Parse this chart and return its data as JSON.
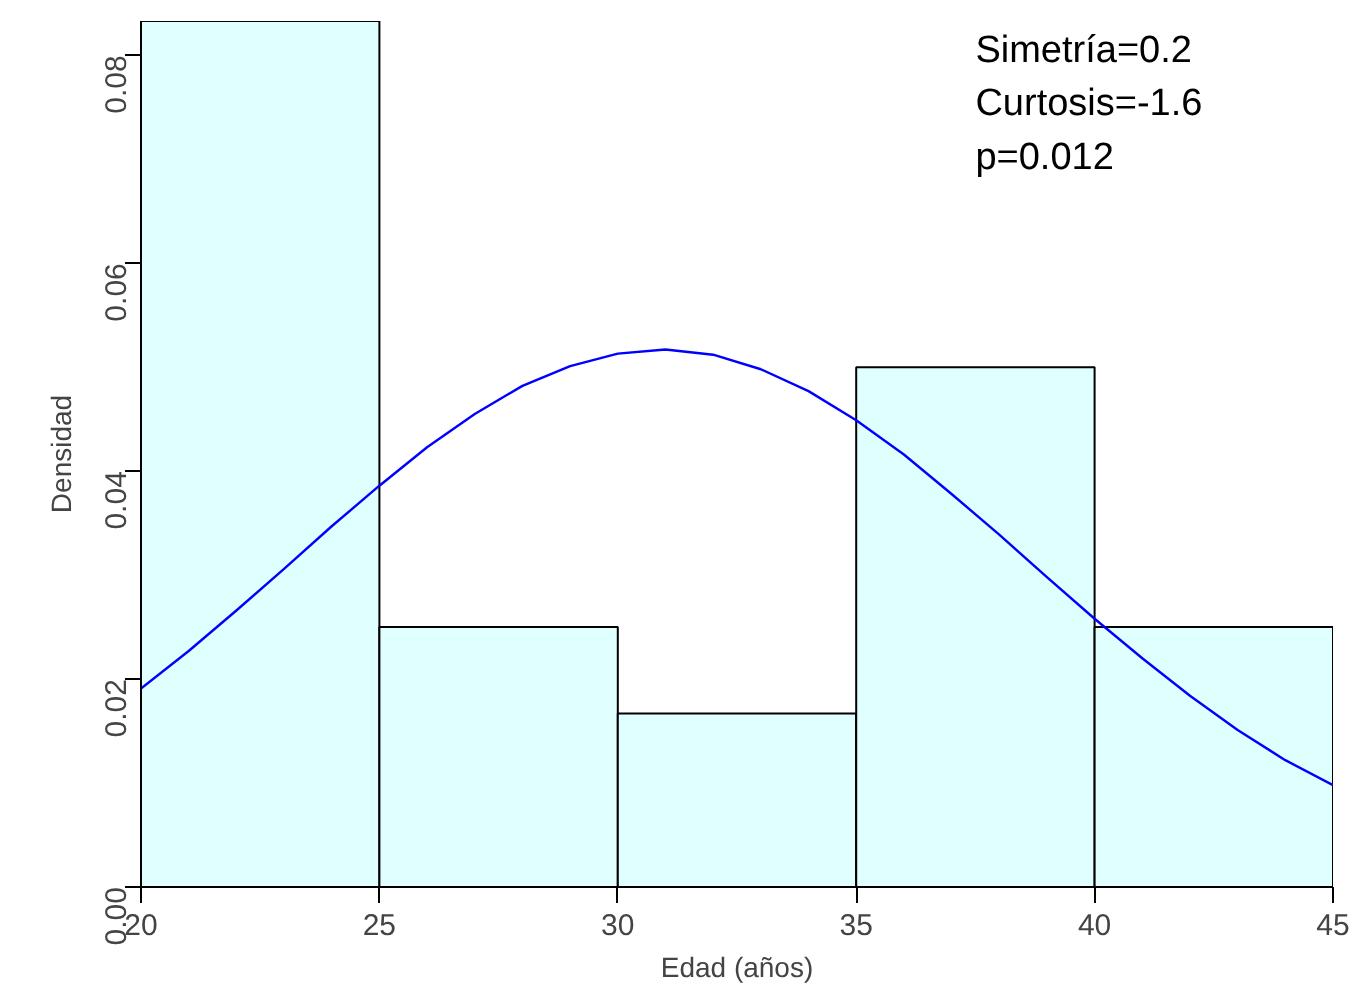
{
  "chart_data": {
    "type": "histogram",
    "xlabel": "Edad (años)",
    "ylabel": "Densidad",
    "bins": [
      20,
      25,
      30,
      35,
      40,
      45
    ],
    "values": [
      0.0833,
      0.025,
      0.0167,
      0.05,
      0.025
    ],
    "color": "#e0ffff",
    "series": [
      {
        "type": "line",
        "color": "#0000ff",
        "x": [
          20,
          21,
          22,
          23,
          24,
          25,
          26,
          27,
          28,
          29,
          30,
          31,
          32,
          33,
          34,
          35,
          36,
          37,
          38,
          39,
          40,
          41,
          42,
          43,
          44,
          45
        ],
        "values": [
          0.0191,
          0.0227,
          0.0266,
          0.0306,
          0.0347,
          0.0386,
          0.0423,
          0.0455,
          0.0482,
          0.0501,
          0.0513,
          0.0517,
          0.0512,
          0.0498,
          0.0477,
          0.0449,
          0.0416,
          0.0378,
          0.0339,
          0.0298,
          0.0258,
          0.022,
          0.0184,
          0.0151,
          0.0122,
          0.0098
        ]
      }
    ],
    "xlim": [
      20,
      45
    ],
    "ylim": [
      0,
      0.0833
    ],
    "xticks": [
      20,
      25,
      30,
      35,
      40,
      45
    ],
    "yticks": [
      {
        "value": 0,
        "label": "0.00"
      },
      {
        "value": 0.02,
        "label": "0.02"
      },
      {
        "value": 0.04,
        "label": "0.04"
      },
      {
        "value": 0.06,
        "label": "0.06"
      },
      {
        "value": 0.08,
        "label": "0.08"
      }
    ],
    "grid": false,
    "annotations": [
      "Simetría=0.2",
      "Curtosis=-1.6",
      "p=0.012"
    ]
  }
}
